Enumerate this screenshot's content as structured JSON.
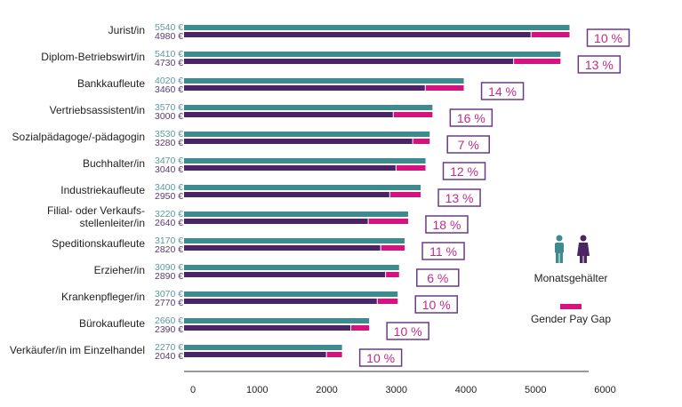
{
  "chart_data": {
    "type": "bar",
    "orientation": "horizontal",
    "title": "",
    "xlabel": "",
    "ylabel": "",
    "xlim": [
      0,
      6000
    ],
    "xticks": [
      "0",
      "1000",
      "2000",
      "3000",
      "4000",
      "5000",
      "6000"
    ],
    "currency": "€",
    "categories": [
      [
        "Jurist/in"
      ],
      [
        "Diplom-Betriebswirt/in"
      ],
      [
        "Bankkaufleute"
      ],
      [
        "Vertriebsassistent/in"
      ],
      [
        "Sozialpädagoge/-pädagogin"
      ],
      [
        "Buchhalter/in"
      ],
      [
        "Industriekaufleute"
      ],
      [
        "Filial- oder Verkaufs-",
        "stellenleiter/in"
      ],
      [
        "Speditionskaufleute"
      ],
      [
        "Erzieher/in"
      ],
      [
        "Krankenpfleger/in"
      ],
      [
        "Bürokaufleute"
      ],
      [
        "Verkäufer/in im Einzelhandel"
      ]
    ],
    "series": [
      {
        "name": "Männer (Monatsgehälter)",
        "color": "#3f8a8e",
        "values": [
          5540,
          5410,
          4020,
          3570,
          3530,
          3470,
          3400,
          3220,
          3170,
          3090,
          3070,
          2660,
          2270
        ]
      },
      {
        "name": "Frauen (Monatsgehälter)",
        "color": "#4b2466",
        "values": [
          4980,
          4730,
          3460,
          3000,
          3280,
          3040,
          2950,
          2640,
          2820,
          2890,
          2770,
          2390,
          2040
        ]
      },
      {
        "name": "Gender Pay Gap",
        "color": "#d4137f",
        "unit": "%",
        "values": [
          10,
          13,
          14,
          16,
          7,
          12,
          13,
          18,
          11,
          6,
          10,
          10,
          10
        ]
      }
    ],
    "value_labels_men": [
      "5540 €",
      "5410 €",
      "4020 €",
      "3570 €",
      "3530 €",
      "3470 €",
      "3400 €",
      "3220 €",
      "3170 €",
      "3090 €",
      "3070 €",
      "2660 €",
      "2270 €"
    ],
    "value_labels_women": [
      "4980 €",
      "4730 €",
      "3460 €",
      "3000 €",
      "3280 €",
      "3040 €",
      "2950 €",
      "2640 €",
      "2820 €",
      "2890 €",
      "2770 €",
      "2390 €",
      "2040 €"
    ],
    "gap_labels": [
      "10 %",
      "13 %",
      "14 %",
      "16 %",
      "7 %",
      "12 %",
      "13 %",
      "18 %",
      "11 %",
      "6 %",
      "10 %",
      "10 %",
      "10 %"
    ],
    "legend": {
      "position": "right",
      "salary_label": "Monatsgehälter",
      "gap_label": "Gender Pay Gap",
      "male_icon": "man-icon",
      "female_icon": "woman-icon"
    },
    "colors": {
      "men": "#3f8a8e",
      "women": "#4b2466",
      "gap": "#d4137f",
      "badge_border": "#6a3a85",
      "badge_text": "#c42a86",
      "men_label": "#5a9aa0",
      "women_label": "#5a3a72"
    }
  }
}
